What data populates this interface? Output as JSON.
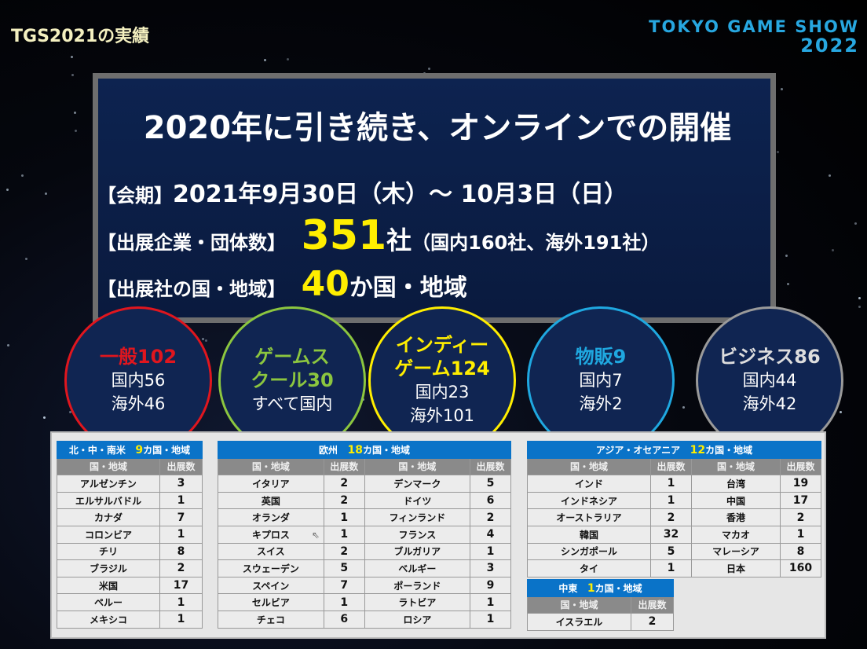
{
  "header": {
    "title": "TGS2021の実績",
    "logo_line1": "TOKYO GAME SHOW",
    "logo_line2": "2022"
  },
  "main": {
    "headline": "2020年に引き続き、オンラインでの開催",
    "period_label": "【会期】",
    "period_value": "2021年9月30日（木）～ 10月3日（日）",
    "exhibitors_label": "【出展企業・団体数】",
    "exhibitors_count": "351",
    "exhibitors_unit": "社",
    "exhibitors_detail": "（国内160社、海外191社）",
    "countries_label": "【出展社の国・地域】",
    "countries_count": "40",
    "countries_unit": "か国・地域"
  },
  "categories": [
    {
      "title": "一般102",
      "l1": "国内56",
      "l2": "海外46",
      "color": "#e0161e"
    },
    {
      "title": "ゲームス",
      "title2": "クール30",
      "l1": "すべて国内",
      "color": "#8cc63f"
    },
    {
      "title": "インディー",
      "title2": "ゲーム124",
      "l1": "国内23",
      "l2": "海外101",
      "color": "#ffee00"
    },
    {
      "title": "物販9",
      "l1": "国内7",
      "l2": "海外2",
      "color": "#1fa8e0"
    },
    {
      "title": "ビジネス86",
      "l1": "国内44",
      "l2": "海外42",
      "color": "#9a9a9a"
    }
  ],
  "col_country": "国・地域",
  "col_count": "出展数",
  "americas": {
    "name": "北・中・南米",
    "count": "9",
    "suffix": "カ国・地域",
    "rows": [
      [
        "アルゼンチン",
        "3"
      ],
      [
        "エルサルバドル",
        "1"
      ],
      [
        "カナダ",
        "7"
      ],
      [
        "コロンビア",
        "1"
      ],
      [
        "チリ",
        "8"
      ],
      [
        "ブラジル",
        "2"
      ],
      [
        "米国",
        "17"
      ],
      [
        "ペルー",
        "1"
      ],
      [
        "メキシコ",
        "1"
      ]
    ]
  },
  "europe": {
    "name": "欧州",
    "count": "18",
    "suffix": "カ国・地域",
    "rows": [
      [
        "イタリア",
        "2",
        "デンマーク",
        "5"
      ],
      [
        "英国",
        "2",
        "ドイツ",
        "6"
      ],
      [
        "オランダ",
        "1",
        "フィンランド",
        "2"
      ],
      [
        "キプロス",
        "1",
        "フランス",
        "4"
      ],
      [
        "スイス",
        "2",
        "ブルガリア",
        "1"
      ],
      [
        "スウェーデン",
        "5",
        "ベルギー",
        "3"
      ],
      [
        "スペイン",
        "7",
        "ポーランド",
        "9"
      ],
      [
        "セルビア",
        "1",
        "ラトビア",
        "1"
      ],
      [
        "チェコ",
        "6",
        "ロシア",
        "1"
      ]
    ]
  },
  "asia": {
    "name": "アジア・オセアニア",
    "count": "12",
    "suffix": "カ国・地域",
    "rows": [
      [
        "インド",
        "1",
        "台湾",
        "19"
      ],
      [
        "インドネシア",
        "1",
        "中国",
        "17"
      ],
      [
        "オーストラリア",
        "2",
        "香港",
        "2"
      ],
      [
        "韓国",
        "32",
        "マカオ",
        "1"
      ],
      [
        "シンガポール",
        "5",
        "マレーシア",
        "8"
      ],
      [
        "タイ",
        "1",
        "日本",
        "160"
      ]
    ]
  },
  "mideast": {
    "name": "中東",
    "count": "1",
    "suffix": "カ国・地域",
    "rows": [
      [
        "イスラエル",
        "2"
      ]
    ]
  }
}
